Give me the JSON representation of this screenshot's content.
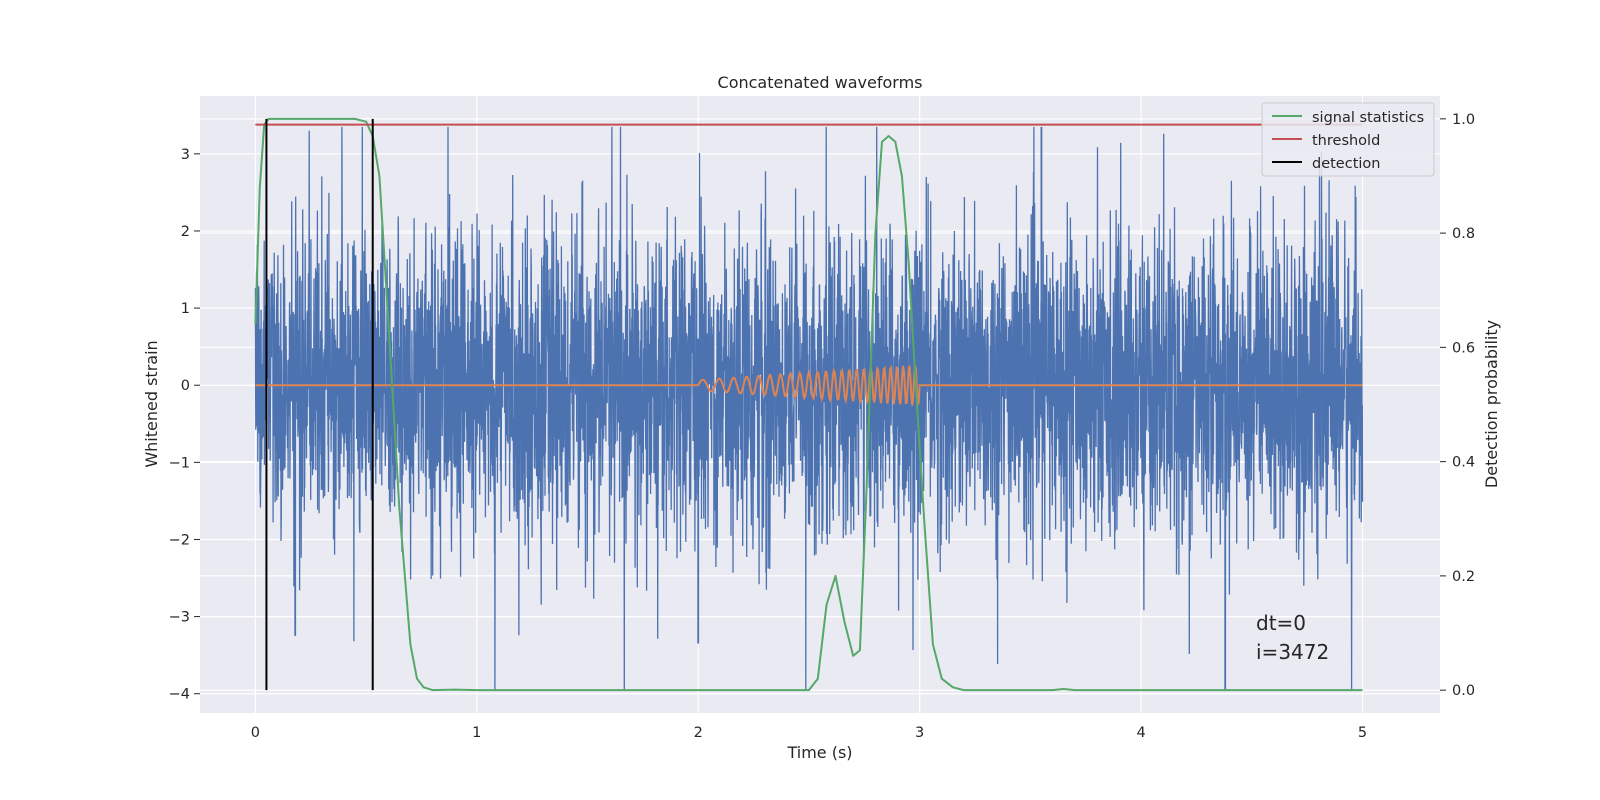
{
  "chart_data": {
    "type": "line",
    "title": "Concatenated waveforms",
    "xlabel": "Time (s)",
    "ylabel": "Whitened strain",
    "y2label": "Detection probability",
    "xlim": [
      -0.25,
      5.35
    ],
    "ylim": [
      -4.25,
      3.75
    ],
    "y2lim": [
      -0.04,
      1.04
    ],
    "x_ticks": [
      0,
      1,
      2,
      3,
      4,
      5
    ],
    "y_ticks": [
      -4,
      -3,
      -2,
      -1,
      0,
      1,
      2,
      3
    ],
    "y2_ticks": [
      0.0,
      0.2,
      0.4,
      0.6,
      0.8,
      1.0
    ],
    "x_tick_labels": [
      "0",
      "1",
      "2",
      "3",
      "4",
      "5"
    ],
    "y_tick_labels": [
      "−4",
      "−3",
      "−2",
      "−1",
      "0",
      "1",
      "2",
      "3"
    ],
    "y2_tick_labels": [
      "0.0",
      "0.2",
      "0.4",
      "0.6",
      "0.8",
      "1.0"
    ],
    "grid": true,
    "legend_position": "top-right",
    "legend": [
      {
        "label": "signal statistics",
        "color": "#55a868"
      },
      {
        "label": "threshold",
        "color": "#c44e52"
      },
      {
        "label": "detection",
        "color": "#000000"
      }
    ],
    "annotation_lines": [
      "dt=0",
      "i=3472"
    ],
    "series": [
      {
        "name": "",
        "color": "#4c72b0",
        "kind": "noise",
        "x_range": [
          0,
          5
        ],
        "typical_envelope": [
          -1.0,
          1.0
        ],
        "max_value": 3.35,
        "min_value": -3.95
      },
      {
        "name": "",
        "color": "#dd8452",
        "kind": "chirp",
        "flat_value": 0,
        "chirp_x_range": [
          2.0,
          3.0
        ],
        "chirp_peak_amplitude": 0.27,
        "x_range": [
          0,
          5
        ]
      },
      {
        "name": "signal statistics",
        "color": "#55a868",
        "axis": "right",
        "x": [
          0.0,
          0.02,
          0.04,
          0.06,
          0.1,
          0.2,
          0.3,
          0.4,
          0.45,
          0.5,
          0.53,
          0.56,
          0.6,
          0.65,
          0.7,
          0.73,
          0.76,
          0.8,
          0.9,
          1.0,
          2.5,
          2.54,
          2.58,
          2.62,
          2.66,
          2.7,
          2.73,
          2.76,
          2.8,
          2.83,
          2.86,
          2.89,
          2.92,
          2.95,
          2.98,
          3.02,
          3.06,
          3.1,
          3.15,
          3.2,
          3.6,
          3.65,
          3.7,
          5.0
        ],
        "y": [
          0.64,
          0.88,
          0.99,
          1.0,
          1.0,
          1.0,
          1.0,
          1.0,
          1.0,
          0.995,
          0.97,
          0.9,
          0.65,
          0.32,
          0.08,
          0.02,
          0.005,
          0.0,
          0.001,
          0.0,
          0.0,
          0.02,
          0.15,
          0.2,
          0.12,
          0.06,
          0.07,
          0.35,
          0.8,
          0.96,
          0.97,
          0.96,
          0.9,
          0.75,
          0.55,
          0.3,
          0.08,
          0.02,
          0.005,
          0.0,
          0.0,
          0.002,
          0.0,
          0.0
        ]
      },
      {
        "name": "threshold",
        "color": "#c44e52",
        "axis": "right",
        "x": [
          0,
          5
        ],
        "y": [
          0.99,
          0.99
        ]
      },
      {
        "name": "detection",
        "color": "#000000",
        "axis": "right",
        "x_positions": [
          0.05,
          0.53
        ],
        "y_range": [
          0.0,
          1.0
        ]
      }
    ]
  }
}
